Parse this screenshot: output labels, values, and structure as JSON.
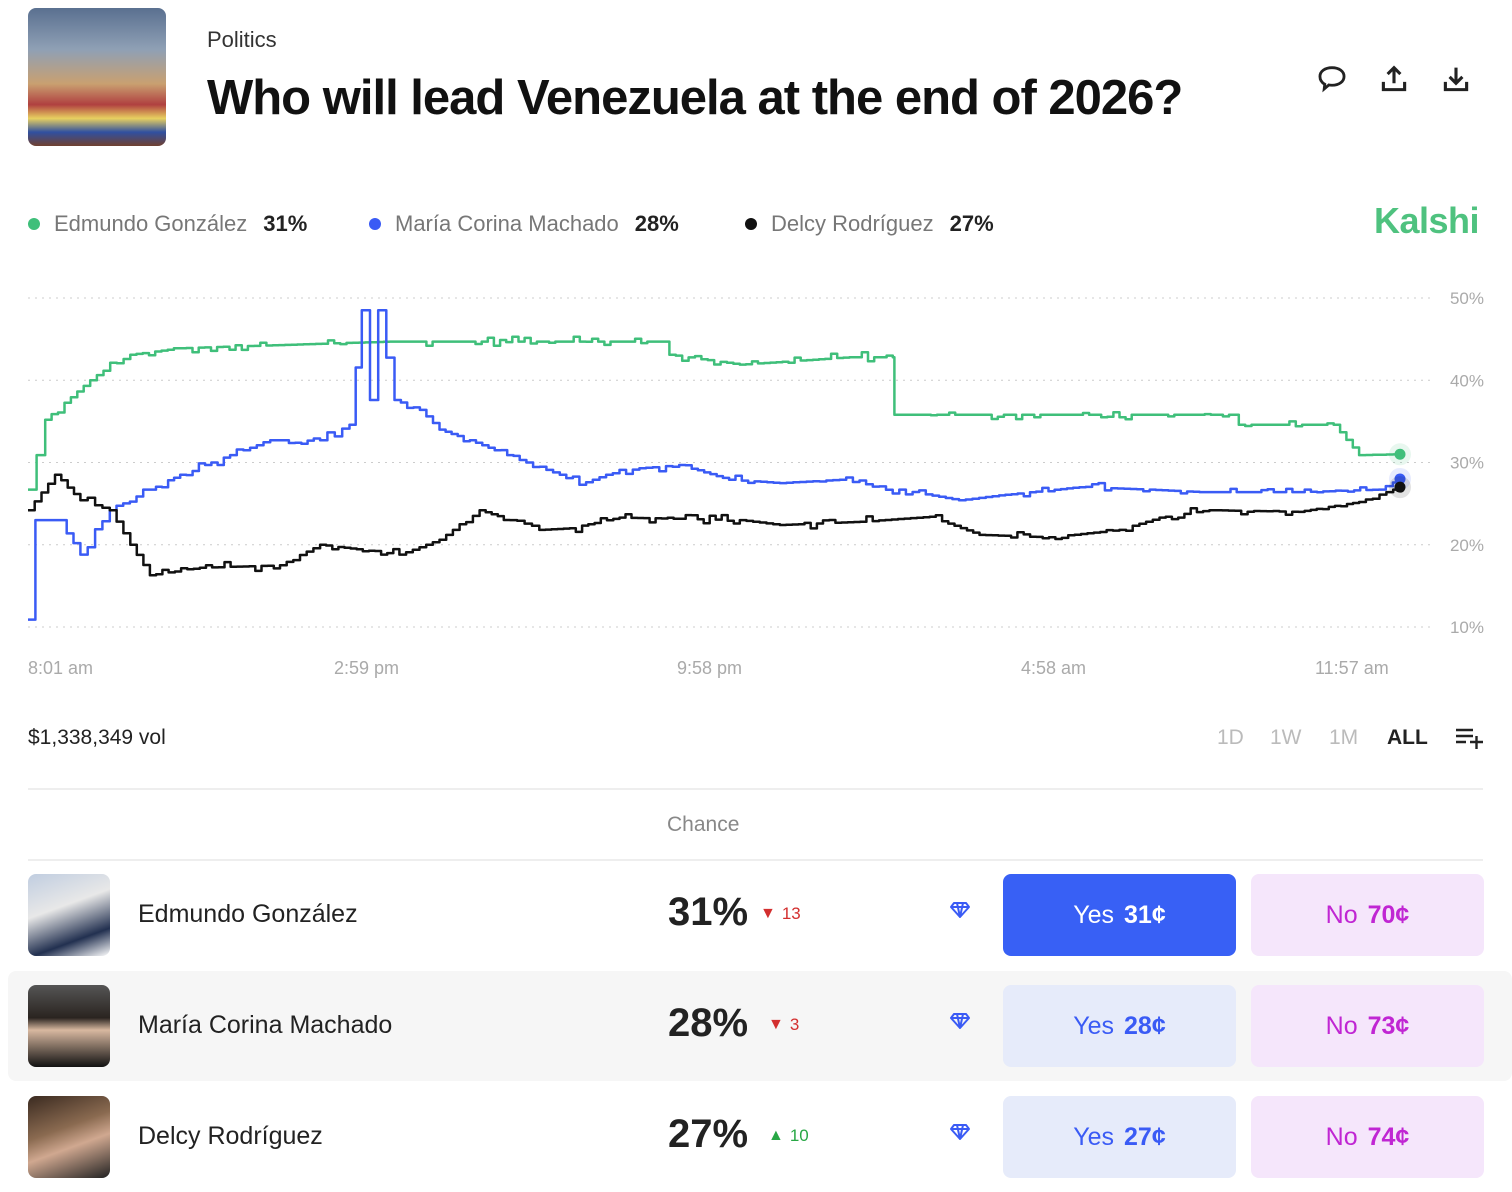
{
  "header": {
    "category": "Politics",
    "title": "Who will lead Venezuela at the end of 2026?",
    "icons": [
      "comment-icon",
      "share-icon",
      "download-icon"
    ]
  },
  "brand": "Kalshi",
  "legend": [
    {
      "name": "Edmundo González",
      "value": "31%",
      "color": "#3fbf7a"
    },
    {
      "name": "María Corina Machado",
      "value": "28%",
      "color": "#3a5bf5"
    },
    {
      "name": "Delcy Rodríguez",
      "value": "27%",
      "color": "#111111"
    }
  ],
  "chart_data": {
    "type": "line",
    "x_ticks": [
      "8:01 am",
      "2:59 pm",
      "9:58 pm",
      "4:58 am",
      "11:57 am"
    ],
    "y_ticks": [
      "50%",
      "40%",
      "30%",
      "20%",
      "10%"
    ],
    "ylim": [
      10,
      50
    ],
    "grid": true,
    "series": [
      {
        "name": "Edmundo González",
        "color": "#3fbf7a",
        "points": [
          [
            "08:01",
            26.7
          ],
          [
            "08:22",
            35.2
          ],
          [
            "09:17",
            40
          ],
          [
            "10:06",
            43.1
          ],
          [
            "11:07",
            43.9
          ],
          [
            "15:23",
            44.7
          ],
          [
            "20:53",
            44.7
          ],
          [
            "21:05",
            43.1
          ],
          [
            "22:31",
            41.9
          ],
          [
            "00:45",
            42.8
          ],
          [
            "01:38",
            42.8
          ],
          [
            "01:40",
            35.8
          ],
          [
            "08:29",
            35.8
          ],
          [
            "08:41",
            34.6
          ],
          [
            "10:37",
            34.6
          ],
          [
            "11:08",
            30.9
          ],
          [
            "11:58",
            31
          ]
        ]
      },
      {
        "name": "María Corina Machado",
        "color": "#3a5bf5",
        "points": [
          [
            "08:01",
            10.9
          ],
          [
            "08:10",
            23
          ],
          [
            "08:40",
            23
          ],
          [
            "09:05",
            18.8
          ],
          [
            "09:41",
            24.2
          ],
          [
            "10:30",
            26.7
          ],
          [
            "11:07",
            28.5
          ],
          [
            "12:08",
            30.9
          ],
          [
            "12:57",
            32.7
          ],
          [
            "13:58",
            32.7
          ],
          [
            "14:34",
            34.6
          ],
          [
            "14:49",
            48.5
          ],
          [
            "14:59",
            37.6
          ],
          [
            "15:09",
            48.5
          ],
          [
            "15:29",
            37.6
          ],
          [
            "16:00",
            36.4
          ],
          [
            "16:24",
            34
          ],
          [
            "17:01",
            32.7
          ],
          [
            "18:02",
            30.3
          ],
          [
            "18:51",
            28.5
          ],
          [
            "19:15",
            27.3
          ],
          [
            "20:04",
            29.1
          ],
          [
            "21:17",
            29.7
          ],
          [
            "22:18",
            27.9
          ],
          [
            "23:20",
            27.5
          ],
          [
            "00:33",
            27.9
          ],
          [
            "01:46",
            26.7
          ],
          [
            "02:59",
            25.4
          ],
          [
            "03:48",
            26
          ],
          [
            "05:26",
            27
          ],
          [
            "06:52",
            26.7
          ],
          [
            "07:53",
            26.4
          ],
          [
            "09:54",
            26.4
          ],
          [
            "11:32",
            26.7
          ],
          [
            "11:58",
            28
          ]
        ]
      },
      {
        "name": "Delcy Rodríguez",
        "color": "#111111",
        "points": [
          [
            "08:01",
            24.2
          ],
          [
            "08:34",
            28.5
          ],
          [
            "09:05",
            25.4
          ],
          [
            "09:41",
            24.2
          ],
          [
            "10:06",
            20
          ],
          [
            "10:30",
            16.3
          ],
          [
            "11:31",
            17.2
          ],
          [
            "13:09",
            17.5
          ],
          [
            "13:58",
            20
          ],
          [
            "15:35",
            18.8
          ],
          [
            "16:24",
            20.6
          ],
          [
            "17:13",
            24.2
          ],
          [
            "17:50",
            23
          ],
          [
            "18:26",
            21.8
          ],
          [
            "19:03",
            22
          ],
          [
            "20:04",
            23.3
          ],
          [
            "22:31",
            23
          ],
          [
            "23:20",
            22.4
          ],
          [
            "00:58",
            22.8
          ],
          [
            "02:23",
            23.4
          ],
          [
            "03:24",
            21.2
          ],
          [
            "04:49",
            20.9
          ],
          [
            "06:15",
            21.8
          ],
          [
            "07:04",
            23.3
          ],
          [
            "08:05",
            24.2
          ],
          [
            "09:54",
            24
          ],
          [
            "11:08",
            25.2
          ],
          [
            "11:58",
            27
          ]
        ]
      }
    ]
  },
  "footer": {
    "volume": "$1,338,349 vol",
    "ranges": [
      "1D",
      "1W",
      "1M",
      "ALL"
    ],
    "active_range": "ALL"
  },
  "table": {
    "header": "Chance",
    "rows": [
      {
        "name": "Edmundo González",
        "chance": "31%",
        "change": "13",
        "direction": "down",
        "yes": "Yes",
        "yes_price": "31¢",
        "no": "No",
        "no_price": "70¢"
      },
      {
        "name": "María Corina Machado",
        "chance": "28%",
        "change": "3",
        "direction": "down",
        "yes": "Yes",
        "yes_price": "28¢",
        "no": "No",
        "no_price": "73¢"
      },
      {
        "name": "Delcy Rodríguez",
        "chance": "27%",
        "change": "10",
        "direction": "up",
        "yes": "Yes",
        "yes_price": "27¢",
        "no": "No",
        "no_price": "74¢"
      }
    ]
  }
}
